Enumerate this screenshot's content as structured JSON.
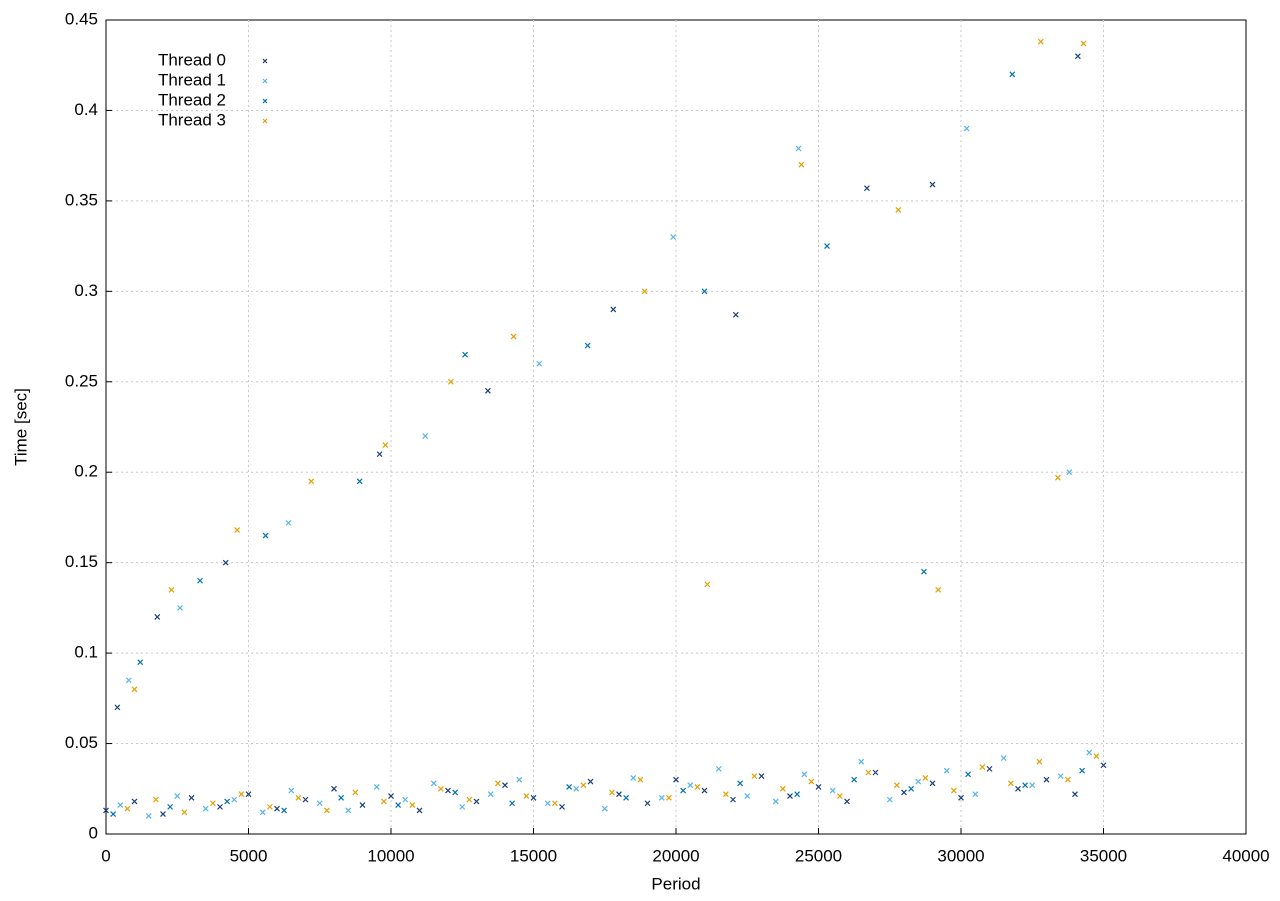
{
  "chart_data": {
    "type": "scatter",
    "xlabel": "Period",
    "ylabel": "Time [sec]",
    "xlim": [
      0,
      40000
    ],
    "ylim": [
      0,
      0.45
    ],
    "xticks": [
      0,
      5000,
      10000,
      15000,
      20000,
      25000,
      30000,
      35000,
      40000
    ],
    "yticks": [
      0,
      0.05,
      0.1,
      0.15,
      0.2,
      0.25,
      0.3,
      0.35,
      0.4,
      0.45
    ],
    "grid": true,
    "legend": "top-left",
    "series": [
      {
        "name": "Thread 0",
        "color": "#1a3f7a",
        "x": [
          0,
          1000,
          2000,
          3000,
          4000,
          5000,
          6000,
          7000,
          8000,
          9000,
          10000,
          11000,
          12000,
          13000,
          14000,
          15000,
          16000,
          17000,
          18000,
          19000,
          20000,
          21000,
          22000,
          23000,
          24000,
          25000,
          26000,
          27000,
          28000,
          29000,
          30000,
          31000,
          32000,
          33000,
          34000,
          35000,
          400,
          1800,
          4200,
          9600,
          13400,
          17800,
          22100,
          26700,
          29000,
          34100
        ],
        "y": [
          0.013,
          0.018,
          0.011,
          0.02,
          0.015,
          0.022,
          0.014,
          0.019,
          0.025,
          0.016,
          0.021,
          0.013,
          0.024,
          0.018,
          0.027,
          0.02,
          0.015,
          0.029,
          0.022,
          0.017,
          0.03,
          0.024,
          0.019,
          0.032,
          0.021,
          0.026,
          0.018,
          0.034,
          0.023,
          0.028,
          0.02,
          0.036,
          0.025,
          0.03,
          0.022,
          0.038,
          0.07,
          0.12,
          0.15,
          0.21,
          0.245,
          0.29,
          0.287,
          0.357,
          0.359,
          0.43
        ]
      },
      {
        "name": "Thread 1",
        "color": "#56b4e9",
        "x": [
          500,
          1500,
          2500,
          3500,
          4500,
          5500,
          6500,
          7500,
          8500,
          9500,
          10500,
          11500,
          12500,
          13500,
          14500,
          15500,
          16500,
          17500,
          18500,
          19500,
          20500,
          21500,
          22500,
          23500,
          24500,
          25500,
          26500,
          27500,
          28500,
          29500,
          30500,
          31500,
          32500,
          33500,
          34500,
          800,
          2600,
          6400,
          11200,
          15200,
          19900,
          24300,
          30200,
          33800
        ],
        "y": [
          0.016,
          0.01,
          0.021,
          0.014,
          0.019,
          0.012,
          0.024,
          0.017,
          0.013,
          0.026,
          0.019,
          0.028,
          0.015,
          0.022,
          0.03,
          0.017,
          0.025,
          0.014,
          0.031,
          0.02,
          0.027,
          0.036,
          0.021,
          0.018,
          0.033,
          0.024,
          0.04,
          0.019,
          0.029,
          0.035,
          0.022,
          0.042,
          0.027,
          0.032,
          0.045,
          0.085,
          0.125,
          0.172,
          0.22,
          0.26,
          0.33,
          0.379,
          0.39,
          0.2
        ]
      },
      {
        "name": "Thread 2",
        "color": "#0072b2",
        "x": [
          250,
          2250,
          4250,
          6250,
          8250,
          10250,
          12250,
          14250,
          16250,
          18250,
          20250,
          22250,
          24250,
          26250,
          28250,
          30250,
          32250,
          34250,
          1200,
          3300,
          5600,
          8900,
          12600,
          16900,
          21000,
          25300,
          28700,
          31800
        ],
        "y": [
          0.011,
          0.015,
          0.018,
          0.013,
          0.02,
          0.016,
          0.023,
          0.017,
          0.026,
          0.02,
          0.024,
          0.028,
          0.022,
          0.03,
          0.025,
          0.033,
          0.027,
          0.035,
          0.095,
          0.14,
          0.165,
          0.195,
          0.265,
          0.27,
          0.3,
          0.325,
          0.145,
          0.42
        ]
      },
      {
        "name": "Thread 3",
        "color": "#e69f00",
        "x": [
          750,
          1750,
          2750,
          3750,
          4750,
          5750,
          6750,
          7750,
          8750,
          9750,
          10750,
          11750,
          12750,
          13750,
          14750,
          15750,
          16750,
          17750,
          18750,
          19750,
          20750,
          21750,
          22750,
          23750,
          24750,
          25750,
          26750,
          27750,
          28750,
          29750,
          30750,
          31750,
          32750,
          33750,
          34750,
          1000,
          2300,
          4600,
          7200,
          9800,
          12100,
          14300,
          18900,
          21100,
          24400,
          27800,
          29200,
          32800,
          33400,
          34300
        ],
        "y": [
          0.014,
          0.019,
          0.012,
          0.017,
          0.022,
          0.015,
          0.02,
          0.013,
          0.023,
          0.018,
          0.016,
          0.025,
          0.019,
          0.028,
          0.021,
          0.017,
          0.027,
          0.023,
          0.03,
          0.02,
          0.026,
          0.022,
          0.032,
          0.025,
          0.029,
          0.021,
          0.034,
          0.027,
          0.031,
          0.024,
          0.037,
          0.028,
          0.04,
          0.03,
          0.043,
          0.08,
          0.135,
          0.168,
          0.195,
          0.215,
          0.25,
          0.275,
          0.3,
          0.138,
          0.37,
          0.345,
          0.135,
          0.438,
          0.197,
          0.437
        ]
      }
    ]
  }
}
